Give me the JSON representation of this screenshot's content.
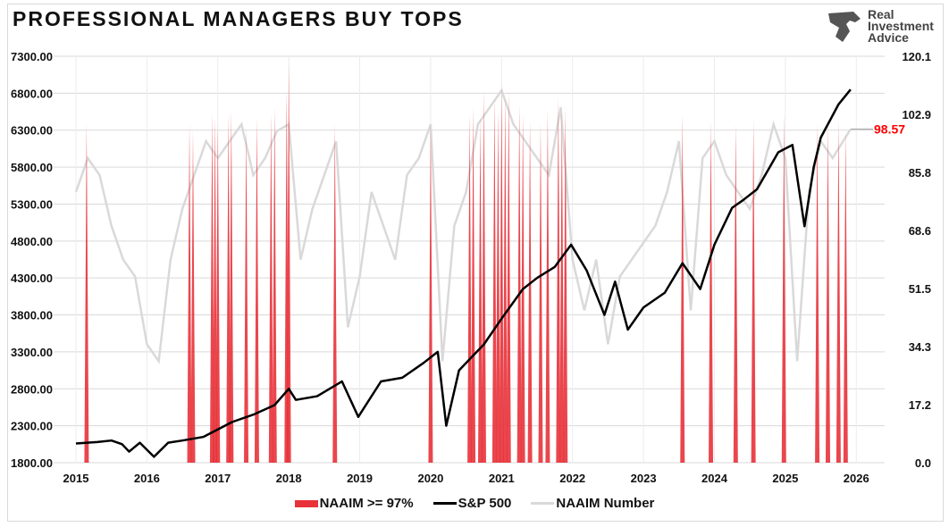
{
  "title": "PROFESSIONAL MANAGERS BUY TOPS",
  "logo": {
    "line1": "Real",
    "line2": "Investment",
    "line3": "Advice"
  },
  "chart_data": {
    "type": "line",
    "title": "PROFESSIONAL MANAGERS BUY TOPS",
    "xlabel": "",
    "ylabel": "",
    "x_ticks": [
      "2015",
      "2016",
      "2017",
      "2018",
      "2019",
      "2020",
      "2021",
      "2022",
      "2023",
      "2024",
      "2025",
      "2026"
    ],
    "xlim": [
      2015,
      2026.4
    ],
    "left_axis": {
      "ylim": [
        1800,
        7300
      ],
      "ticks": [
        "1800.00",
        "2300.00",
        "2800.00",
        "3300.00",
        "3800.00",
        "4300.00",
        "4800.00",
        "5300.00",
        "5800.00",
        "6300.00",
        "6800.00",
        "7300.00"
      ]
    },
    "right_axis": {
      "ylim": [
        0,
        120.1
      ],
      "ticks": [
        "0.0",
        "17.2",
        "34.3",
        "51.5",
        "68.6",
        "85.8",
        "102.9",
        "120.1"
      ]
    },
    "grid": true,
    "legend": "bottom",
    "latest_label": "98.57",
    "colors": {
      "naaim_high": "#e8323a",
      "sp500": "#000000",
      "naaim": "#d9d9d9",
      "latest": "#ff0000"
    },
    "series": [
      {
        "name": "S&P 500",
        "axis": "left",
        "x": [
          2015,
          2015.3,
          2015.5,
          2015.65,
          2015.75,
          2015.9,
          2016.1,
          2016.3,
          2016.5,
          2016.8,
          2016.9,
          2017.2,
          2017.5,
          2017.8,
          2018.0,
          2018.1,
          2018.4,
          2018.75,
          2018.98,
          2019.3,
          2019.6,
          2019.9,
          2020.1,
          2020.22,
          2020.4,
          2020.6,
          2020.75,
          2021.0,
          2021.3,
          2021.5,
          2021.75,
          2021.98,
          2022.2,
          2022.45,
          2022.6,
          2022.78,
          2023.0,
          2023.3,
          2023.55,
          2023.8,
          2024.0,
          2024.25,
          2024.4,
          2024.6,
          2024.75,
          2024.9,
          2025.1,
          2025.27,
          2025.4,
          2025.5,
          2025.75,
          2025.92
        ],
        "values": [
          2060,
          2080,
          2100,
          2050,
          1950,
          2070,
          1880,
          2070,
          2100,
          2150,
          2200,
          2350,
          2450,
          2580,
          2800,
          2650,
          2700,
          2900,
          2420,
          2900,
          2950,
          3150,
          3300,
          2300,
          3050,
          3250,
          3400,
          3750,
          4150,
          4300,
          4450,
          4750,
          4400,
          3800,
          4250,
          3600,
          3900,
          4100,
          4500,
          4150,
          4750,
          5250,
          5350,
          5500,
          5750,
          6000,
          6100,
          5000,
          5800,
          6200,
          6650,
          6850
        ]
      },
      {
        "name": "NAAIM Number",
        "axis": "right",
        "values": [
          80,
          90,
          85,
          70,
          60,
          55,
          35,
          30,
          60,
          75,
          85,
          95,
          90,
          95,
          100,
          85,
          90,
          98,
          100,
          60,
          75,
          85,
          95,
          40,
          55,
          80,
          70,
          60,
          85,
          90,
          100,
          30,
          70,
          80,
          100,
          105,
          110,
          100,
          95,
          90,
          85,
          105,
          60,
          45,
          60,
          35,
          55,
          60,
          65,
          70,
          80,
          95,
          45,
          90,
          95,
          85,
          80,
          75,
          85,
          100,
          90,
          30,
          80,
          95,
          90,
          98.57
        ]
      },
      {
        "name": "NAAIM >= 97%",
        "axis": "right",
        "x": [
          2015.15,
          2016.6,
          2016.65,
          2016.92,
          2016.96,
          2017.0,
          2017.15,
          2017.19,
          2017.4,
          2017.55,
          2017.75,
          2017.8,
          2017.97,
          2018.0,
          2018.65,
          2020.0,
          2020.55,
          2020.6,
          2020.7,
          2020.75,
          2020.9,
          2020.95,
          2021.0,
          2021.05,
          2021.1,
          2021.25,
          2021.3,
          2021.4,
          2021.55,
          2021.65,
          2021.8,
          2021.85,
          2021.9,
          2023.55,
          2023.95,
          2024.3,
          2024.55,
          2024.98,
          2025.45,
          2025.6,
          2025.75,
          2025.85
        ],
        "values": [
          100,
          100,
          98,
          103,
          102,
          100,
          103,
          104,
          99,
          102,
          103,
          105,
          110,
          118,
          100,
          100,
          103,
          105,
          102,
          110,
          108,
          104,
          112,
          108,
          110,
          106,
          103,
          101,
          100,
          104,
          108,
          104,
          105,
          103,
          101,
          100,
          101,
          103,
          100,
          100,
          101,
          98
        ]
      }
    ]
  },
  "legend": {
    "items": [
      "NAAIM >= 97%",
      "S&P 500",
      "NAAIM Number"
    ]
  }
}
